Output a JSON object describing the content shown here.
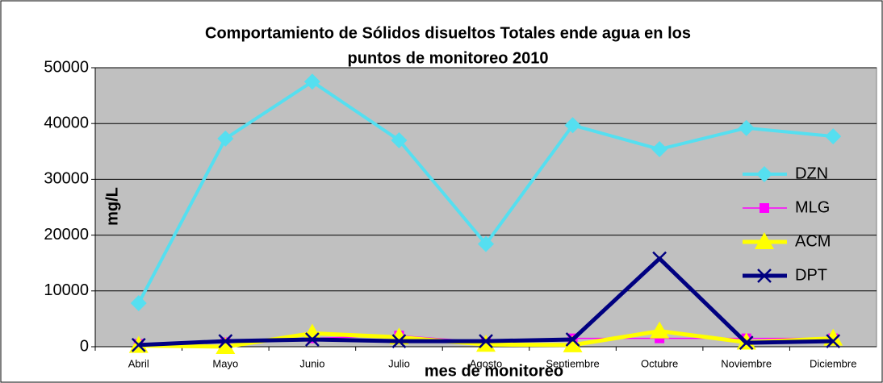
{
  "chart_data": {
    "type": "line",
    "title": [
      "Comportamiento de Sólidos disueltos Totales ende agua en los",
      "puntos de monitoreo 2010"
    ],
    "x_label": "mes de monitoreo",
    "y_label": "mg/L",
    "categories": [
      "Abril",
      "Mayo",
      "Junio",
      "Julio",
      "Agosto",
      "Septiembre",
      "Octubre",
      "Noviembre",
      "Diciembre"
    ],
    "series": [
      {
        "name": "DZN",
        "color": "#55dff0",
        "marker": "diamond",
        "values": [
          7800,
          37300,
          47500,
          37000,
          18400,
          39700,
          35400,
          39200,
          37700
        ]
      },
      {
        "name": "MLG",
        "color": "#ff00ff",
        "marker": "square",
        "values": [
          500,
          800,
          1500,
          2000,
          800,
          1500,
          1500,
          1500,
          1500
        ]
      },
      {
        "name": "ACM",
        "color": "#ffff00",
        "marker": "triangle",
        "values": [
          200,
          0,
          2400,
          1700,
          400,
          300,
          2800,
          800,
          1500
        ]
      },
      {
        "name": "DPT",
        "color": "#000080",
        "marker": "x",
        "values": [
          300,
          1000,
          1300,
          1000,
          1000,
          1300,
          15800,
          700,
          1000
        ]
      }
    ],
    "ylim": [
      0,
      50000
    ],
    "yticks": [
      0,
      10000,
      20000,
      30000,
      40000,
      50000
    ],
    "grid": true,
    "plot_background": "#c0c0c0"
  }
}
